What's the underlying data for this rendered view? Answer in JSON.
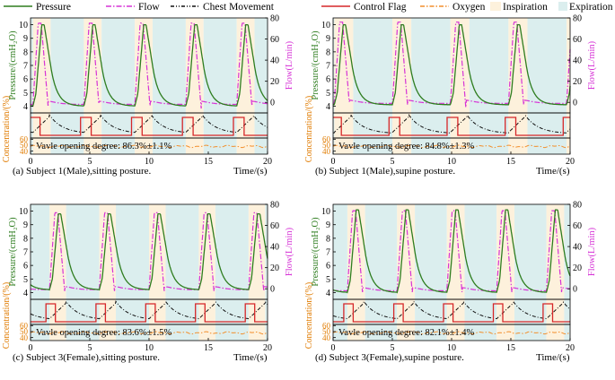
{
  "legend": {
    "pressure": "Pressure",
    "flow": "Flow",
    "chest": "Chest Movement",
    "flag": "Control Flag",
    "oxygen": "Oxygen",
    "insp": "Inspiration",
    "exp": "Expiration"
  },
  "colors": {
    "pressure": "#2e7d1f",
    "flow": "#d633d6",
    "chest": "#111111",
    "flag": "#d62728",
    "oxygen": "#f28e2b",
    "insp": "#fdf1dc",
    "exp": "#dbeeee",
    "left_axis_label": "#2e7d1f",
    "right_axis_label": "#d633d6",
    "conc_label": "#e07b00"
  },
  "chart_data": [
    {
      "type": "line",
      "caption": "(a) Subject 1(Male),sitting posture.",
      "annotation": "Vavle opening degree: 86.3%±1.1%",
      "x_range": [
        0,
        20
      ],
      "x_ticks": [
        0,
        5,
        10,
        15,
        20
      ],
      "xlabel": "Time/(s)",
      "y_left": {
        "label": "Pressure/(cmH₂O)",
        "range": [
          3.5,
          10.5
        ],
        "ticks": [
          4,
          5,
          6,
          7,
          8,
          9,
          10
        ]
      },
      "y_right": {
        "label": "Flow(L/min)",
        "range": [
          -10,
          80
        ],
        "ticks": [
          0,
          20,
          40,
          60,
          80
        ]
      },
      "y_conc": {
        "label": "Concentration/(%)",
        "range": [
          35,
          62
        ],
        "ticks": [
          40,
          50,
          60
        ]
      },
      "period_s": 4.3,
      "cycle_starts": [
        0.2,
        4.5,
        8.8,
        13.1,
        17.4
      ],
      "insp_duration_s": 1.5,
      "peak_pressure": 10.0,
      "min_pressure": 4.0,
      "peak_flow": 75,
      "min_flow": -2,
      "oxygen_mean": 48,
      "flag_high_duration_s": 0.9
    },
    {
      "type": "line",
      "caption": "(b) Subject 1(Male),supine posture.",
      "annotation": "Vavle opening degree: 84.8%±1.3%",
      "x_range": [
        0,
        20
      ],
      "x_ticks": [
        0,
        5,
        10,
        15,
        20
      ],
      "xlabel": "Time/(s)",
      "y_left": {
        "label": "Pressure/(cmH₂O)",
        "range": [
          3.5,
          10.5
        ],
        "ticks": [
          4,
          5,
          6,
          7,
          8,
          9,
          10
        ]
      },
      "y_right": {
        "label": "Flow(L/min)",
        "range": [
          -10,
          80
        ],
        "ticks": [
          0,
          20,
          40,
          60,
          80
        ]
      },
      "y_conc": {
        "label": "Concentration/(%)",
        "range": [
          35,
          62
        ],
        "ticks": [
          40,
          50,
          60
        ]
      },
      "period_s": 4.9,
      "cycle_starts": [
        0.1,
        5.0,
        9.9,
        14.8,
        19.7
      ],
      "insp_duration_s": 1.6,
      "peak_pressure": 10.0,
      "min_pressure": 4.1,
      "peak_flow": 76,
      "min_flow": -1,
      "oxygen_mean": 48,
      "flag_high_duration_s": 0.9
    },
    {
      "type": "line",
      "caption": "(c) Subject 3(Female),sitting posture.",
      "annotation": "Vavle opening degree: 83.6%±1.5%",
      "x_range": [
        0,
        20
      ],
      "x_ticks": [
        0,
        5,
        10,
        15,
        20
      ],
      "xlabel": "Time/(s)",
      "y_left": {
        "label": "Pressure/(cmH₂O)",
        "range": [
          3.5,
          10.5
        ],
        "ticks": [
          4,
          5,
          6,
          7,
          8,
          9,
          10
        ]
      },
      "y_right": {
        "label": "Flow(L/min)",
        "range": [
          -10,
          80
        ],
        "ticks": [
          0,
          20,
          40,
          60,
          80
        ]
      },
      "y_conc": {
        "label": "Concentration/(%)",
        "range": [
          35,
          62
        ],
        "ticks": [
          40,
          50,
          60
        ]
      },
      "period_s": 4.2,
      "cycle_starts": [
        1.6,
        5.8,
        10.0,
        14.2,
        18.4
      ],
      "insp_duration_s": 1.4,
      "peak_pressure": 9.8,
      "min_pressure": 4.2,
      "peak_flow": 72,
      "min_flow": -1,
      "oxygen_mean": 48,
      "flag_high_duration_s": 0.8
    },
    {
      "type": "line",
      "caption": "(d) Subject 3(Female),supine posture.",
      "annotation": "Vavle opening degree: 82.1%±1.4%",
      "x_range": [
        0,
        20
      ],
      "x_ticks": [
        0,
        5,
        10,
        15,
        20
      ],
      "xlabel": "Time/(s)",
      "y_left": {
        "label": "Pressure/(cmH₂O)",
        "range": [
          3.5,
          10.5
        ],
        "ticks": [
          4,
          5,
          6,
          7,
          8,
          9,
          10
        ]
      },
      "y_right": {
        "label": "Flow(L/min)",
        "range": [
          -10,
          80
        ],
        "ticks": [
          0,
          20,
          40,
          60,
          80
        ]
      },
      "y_conc": {
        "label": "Concentration/(%)",
        "range": [
          35,
          62
        ],
        "ticks": [
          40,
          50,
          60
        ]
      },
      "period_s": 4.2,
      "cycle_starts": [
        1.2,
        5.4,
        9.6,
        13.8,
        18.0
      ],
      "insp_duration_s": 1.5,
      "peak_pressure": 10.1,
      "min_pressure": 4.0,
      "peak_flow": 74,
      "min_flow": -2,
      "oxygen_mean": 48,
      "flag_high_duration_s": 0.8
    }
  ]
}
